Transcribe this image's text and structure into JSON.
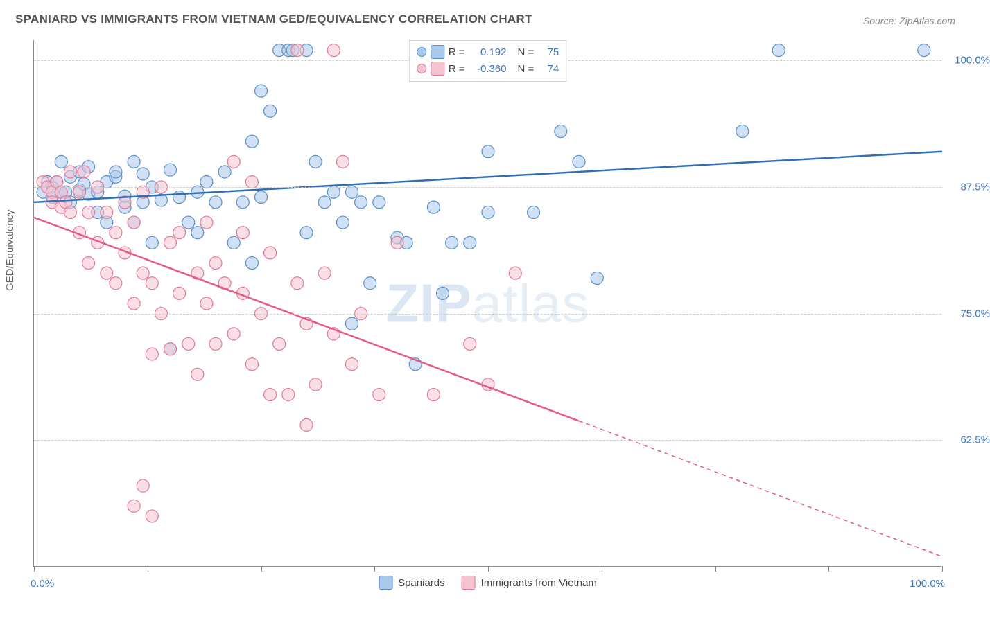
{
  "title": "SPANIARD VS IMMIGRANTS FROM VIETNAM GED/EQUIVALENCY CORRELATION CHART",
  "source": "Source: ZipAtlas.com",
  "watermark_bold": "ZIP",
  "watermark_light": "atlas",
  "ylabel": "GED/Equivalency",
  "chart": {
    "type": "scatter",
    "xlim": [
      0,
      100
    ],
    "ylim": [
      50,
      102
    ],
    "x_tick_positions": [
      0,
      12.5,
      25,
      37.5,
      50,
      62.5,
      75,
      87.5,
      100
    ],
    "x_tick_labels_shown": {
      "start": "0.0%",
      "end": "100.0%"
    },
    "y_gridlines": [
      62.5,
      75.0,
      87.5,
      100.0
    ],
    "y_tick_labels": [
      "62.5%",
      "75.0%",
      "87.5%",
      "100.0%"
    ],
    "background_color": "#ffffff",
    "grid_color": "#cccccc",
    "axis_color": "#888888",
    "marker_radius": 9,
    "marker_opacity": 0.55,
    "marker_stroke_width": 1.2,
    "series": [
      {
        "name": "Spaniards",
        "color_fill": "#a9c9ec",
        "color_stroke": "#5b8fc7",
        "line_color": "#2f6fb3",
        "R": "0.192",
        "N": "75",
        "trend": {
          "x1": 0,
          "y1": 86.0,
          "x2": 100,
          "y2": 91.0,
          "dashed_from_x": null
        },
        "points": [
          [
            1,
            87
          ],
          [
            1.5,
            88
          ],
          [
            2,
            86.5
          ],
          [
            2,
            87.5
          ],
          [
            2.5,
            88
          ],
          [
            3,
            87
          ],
          [
            3,
            90
          ],
          [
            3.5,
            87
          ],
          [
            4,
            88.5
          ],
          [
            4,
            86
          ],
          [
            5,
            89
          ],
          [
            5,
            87.2
          ],
          [
            5.5,
            87.8
          ],
          [
            6,
            86.8
          ],
          [
            6,
            89.5
          ],
          [
            7,
            85
          ],
          [
            7,
            87
          ],
          [
            8,
            88
          ],
          [
            8,
            84
          ],
          [
            9,
            88.5
          ],
          [
            9,
            89
          ],
          [
            10,
            85.5
          ],
          [
            10,
            86.6
          ],
          [
            11,
            84
          ],
          [
            11,
            90
          ],
          [
            12,
            86
          ],
          [
            12,
            88.8
          ],
          [
            13,
            87.5
          ],
          [
            13,
            82
          ],
          [
            14,
            86.2
          ],
          [
            15,
            89.2
          ],
          [
            15,
            71.5
          ],
          [
            16,
            86.5
          ],
          [
            17,
            84
          ],
          [
            18,
            83
          ],
          [
            18,
            87
          ],
          [
            19,
            88
          ],
          [
            20,
            86
          ],
          [
            21,
            89
          ],
          [
            22,
            82
          ],
          [
            23,
            86
          ],
          [
            24,
            92
          ],
          [
            24,
            80
          ],
          [
            25,
            86.5
          ],
          [
            25,
            97
          ],
          [
            26,
            95
          ],
          [
            27,
            101
          ],
          [
            28,
            101
          ],
          [
            28.5,
            101
          ],
          [
            30,
            101
          ],
          [
            30,
            83
          ],
          [
            31,
            90
          ],
          [
            32,
            86
          ],
          [
            33,
            87
          ],
          [
            34,
            84
          ],
          [
            35,
            87
          ],
          [
            35,
            74
          ],
          [
            36,
            86
          ],
          [
            37,
            78
          ],
          [
            38,
            86
          ],
          [
            40,
            82.5
          ],
          [
            41,
            82
          ],
          [
            42,
            70
          ],
          [
            44,
            85.5
          ],
          [
            45,
            77
          ],
          [
            46,
            82
          ],
          [
            48,
            82
          ],
          [
            50,
            91
          ],
          [
            50,
            85
          ],
          [
            55,
            85
          ],
          [
            58,
            93
          ],
          [
            60,
            90
          ],
          [
            62,
            78.5
          ],
          [
            78,
            93
          ],
          [
            82,
            101
          ],
          [
            98,
            101
          ]
        ]
      },
      {
        "name": "Immigrants from Vietnam",
        "color_fill": "#f5c4cf",
        "color_stroke": "#e07998",
        "line_color": "#e65a86",
        "R": "-0.360",
        "N": "74",
        "trend": {
          "x1": 0,
          "y1": 84.5,
          "x2": 100,
          "y2": 51.0,
          "dashed_from_x": 60
        },
        "points": [
          [
            1,
            88
          ],
          [
            1.5,
            87.5
          ],
          [
            2,
            87
          ],
          [
            2,
            86
          ],
          [
            2.5,
            88
          ],
          [
            3,
            87
          ],
          [
            3,
            85.5
          ],
          [
            3.5,
            86
          ],
          [
            4,
            85
          ],
          [
            4,
            89
          ],
          [
            5,
            83
          ],
          [
            5,
            87
          ],
          [
            5.5,
            89
          ],
          [
            6,
            80
          ],
          [
            6,
            85
          ],
          [
            7,
            82
          ],
          [
            7,
            87.5
          ],
          [
            8,
            79
          ],
          [
            8,
            85
          ],
          [
            9,
            78
          ],
          [
            9,
            83
          ],
          [
            10,
            81
          ],
          [
            10,
            86
          ],
          [
            11,
            76
          ],
          [
            11,
            84
          ],
          [
            11,
            56
          ],
          [
            12,
            79
          ],
          [
            12,
            87
          ],
          [
            12,
            58
          ],
          [
            13,
            78
          ],
          [
            13,
            55
          ],
          [
            13,
            71
          ],
          [
            14,
            75
          ],
          [
            14,
            87.5
          ],
          [
            15,
            71.5
          ],
          [
            15,
            82
          ],
          [
            16,
            77
          ],
          [
            16,
            83
          ],
          [
            17,
            72
          ],
          [
            18,
            79
          ],
          [
            18,
            69
          ],
          [
            19,
            76
          ],
          [
            19,
            84
          ],
          [
            20,
            72
          ],
          [
            20,
            80
          ],
          [
            21,
            78
          ],
          [
            22,
            73
          ],
          [
            22,
            90
          ],
          [
            23,
            77
          ],
          [
            23,
            83
          ],
          [
            24,
            70
          ],
          [
            24,
            88
          ],
          [
            25,
            75
          ],
          [
            26,
            81
          ],
          [
            26,
            67
          ],
          [
            27,
            72
          ],
          [
            28,
            67
          ],
          [
            29,
            78
          ],
          [
            29,
            101
          ],
          [
            30,
            74
          ],
          [
            30,
            64
          ],
          [
            31,
            68
          ],
          [
            32,
            79
          ],
          [
            33,
            101
          ],
          [
            33,
            73
          ],
          [
            34,
            90
          ],
          [
            35,
            70
          ],
          [
            36,
            75
          ],
          [
            38,
            67
          ],
          [
            40,
            82
          ],
          [
            44,
            67
          ],
          [
            48,
            72
          ],
          [
            53,
            79
          ],
          [
            50,
            68
          ]
        ]
      }
    ]
  },
  "legend_top": {
    "rows": [
      {
        "swatch_fill": "#a9c9ec",
        "swatch_stroke": "#5b8fc7",
        "circle_fill": "#a9c9ec",
        "circle_stroke": "#5b8fc7",
        "r_label": "R =",
        "r_val": "0.192",
        "n_label": "N =",
        "n_val": "75"
      },
      {
        "swatch_fill": "#f5c4cf",
        "swatch_stroke": "#e07998",
        "circle_fill": "#f5c4cf",
        "circle_stroke": "#e07998",
        "r_label": "R =",
        "r_val": "-0.360",
        "n_label": "N =",
        "n_val": "74"
      }
    ]
  },
  "legend_bottom": {
    "items": [
      {
        "swatch_fill": "#a9c9ec",
        "swatch_stroke": "#5b8fc7",
        "label": "Spaniards"
      },
      {
        "swatch_fill": "#f5c4cf",
        "swatch_stroke": "#e07998",
        "label": "Immigrants from Vietnam"
      }
    ]
  }
}
